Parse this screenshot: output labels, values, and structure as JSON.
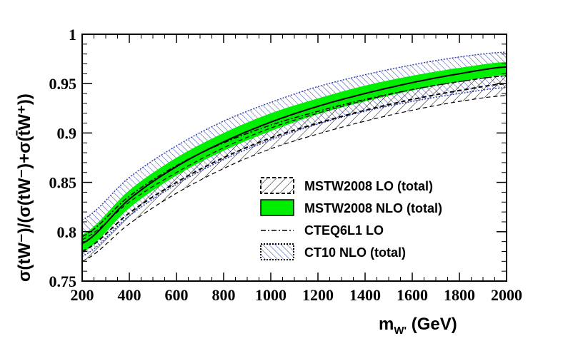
{
  "chart_data": {
    "type": "line",
    "xlabel_main": "m",
    "xlabel_sub": "W'",
    "xlabel_unit": " (GeV)",
    "ylabel": "σ(tW⁻)/(σ(tW⁻)+σ(t̄W⁺))",
    "xlim": [
      200,
      2000
    ],
    "ylim": [
      0.75,
      1.0
    ],
    "x_ticks": [
      200,
      400,
      600,
      800,
      1000,
      1200,
      1400,
      1600,
      1800,
      2000
    ],
    "x_tick_labels": [
      "200",
      "400",
      "600",
      "800",
      "1000",
      "1200",
      "1400",
      "1600",
      "1800",
      "2000"
    ],
    "y_ticks": [
      0.75,
      0.8,
      0.85,
      0.9,
      0.95,
      1.0
    ],
    "y_tick_labels": [
      "0.75",
      "0.8",
      "0.85",
      "0.9",
      "0.95",
      "1"
    ],
    "x": [
      200,
      400,
      600,
      800,
      1000,
      1200,
      1400,
      1600,
      1800,
      2000
    ],
    "series": [
      {
        "name": "MSTW2008 LO (total)",
        "style": "hatched-dashed",
        "central": [
          0.78,
          0.819,
          0.85,
          0.875,
          0.895,
          0.91,
          0.923,
          0.934,
          0.943,
          0.95
        ],
        "lower": [
          0.77,
          0.808,
          0.839,
          0.864,
          0.884,
          0.899,
          0.912,
          0.923,
          0.932,
          0.938
        ],
        "upper": [
          0.792,
          0.83,
          0.86,
          0.885,
          0.905,
          0.92,
          0.933,
          0.944,
          0.952,
          0.958
        ]
      },
      {
        "name": "MSTW2008 NLO (total)",
        "style": "filled-green",
        "color": "#00ee00",
        "central": [
          0.788,
          0.833,
          0.866,
          0.891,
          0.911,
          0.927,
          0.94,
          0.951,
          0.96,
          0.967
        ],
        "lower": [
          0.779,
          0.824,
          0.857,
          0.882,
          0.902,
          0.919,
          0.932,
          0.943,
          0.952,
          0.959
        ],
        "upper": [
          0.797,
          0.842,
          0.875,
          0.9,
          0.92,
          0.935,
          0.948,
          0.958,
          0.966,
          0.972
        ]
      },
      {
        "name": "CTEQ6L1 LO",
        "style": "dash-dot",
        "central": [
          0.795,
          0.836,
          0.867,
          0.89,
          0.908,
          0.922,
          0.934,
          0.944,
          0.952,
          0.958
        ]
      },
      {
        "name": "CT10 NLO (total)",
        "style": "hatched-blue",
        "color": "#3040b0",
        "central": [
          0.793,
          0.835,
          0.867,
          0.892,
          0.912,
          0.928,
          0.941,
          0.951,
          0.959,
          0.964
        ],
        "lower": [
          0.775,
          0.816,
          0.848,
          0.873,
          0.893,
          0.909,
          0.922,
          0.932,
          0.94,
          0.946
        ],
        "upper": [
          0.812,
          0.855,
          0.887,
          0.912,
          0.931,
          0.947,
          0.959,
          0.969,
          0.977,
          0.982
        ]
      }
    ],
    "legend_placement": "center-right",
    "grid": false
  }
}
